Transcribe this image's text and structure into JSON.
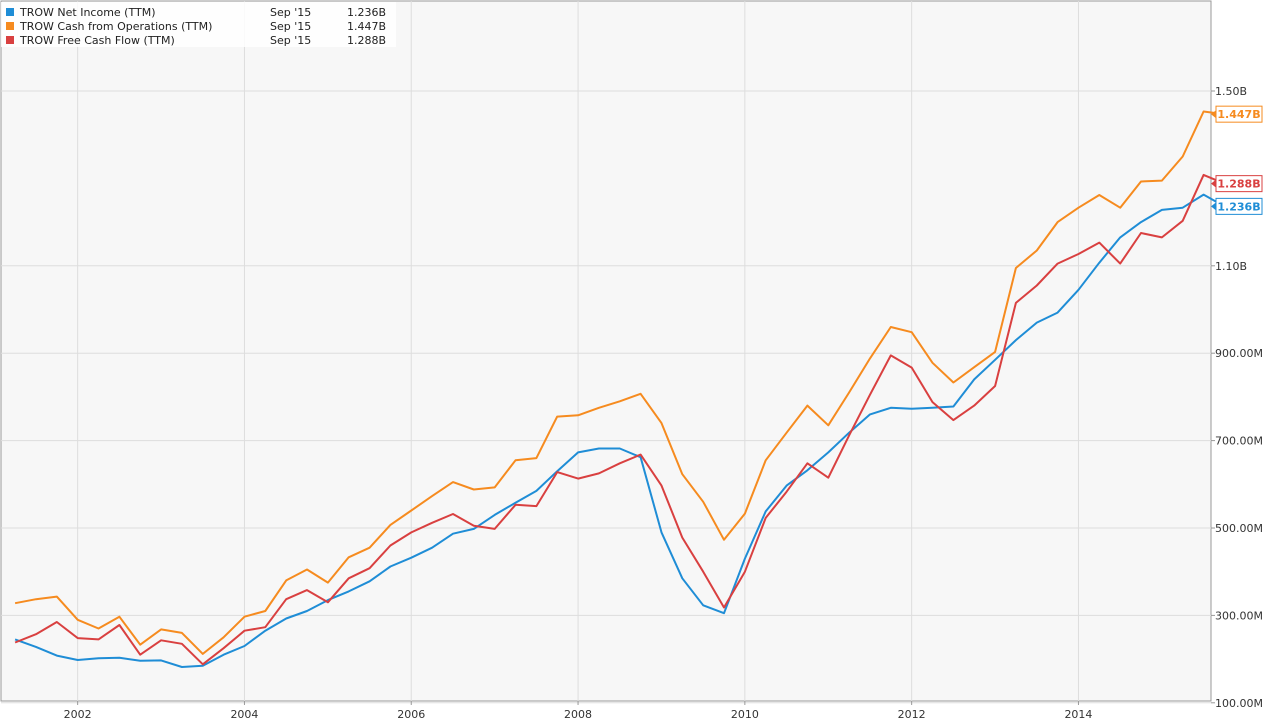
{
  "chart_data": {
    "type": "line",
    "title": "",
    "xlabel": "",
    "ylabel": "",
    "x_tick_labels": [
      "2002",
      "2004",
      "2006",
      "2008",
      "2010",
      "2012",
      "2014"
    ],
    "y_tick_labels": [
      "100.00M",
      "300.00M",
      "500.00M",
      "700.00M",
      "900.00M",
      "1.10B",
      "1.50B"
    ],
    "y_ticks": [
      0.1,
      0.3,
      0.5,
      0.7,
      0.9,
      1.1,
      1.5
    ],
    "xlim": [
      2001.25,
      2015.8
    ],
    "ylim": [
      0.0,
      1.6
    ],
    "grid": true,
    "legend_position": "top-left",
    "x": [
      2001.25,
      2001.5,
      2001.75,
      2002.0,
      2002.25,
      2002.5,
      2002.75,
      2003.0,
      2003.25,
      2003.5,
      2003.75,
      2004.0,
      2004.25,
      2004.5,
      2004.75,
      2005.0,
      2005.25,
      2005.5,
      2005.75,
      2006.0,
      2006.25,
      2006.5,
      2006.75,
      2007.0,
      2007.25,
      2007.5,
      2007.75,
      2008.0,
      2008.25,
      2008.5,
      2008.75,
      2009.0,
      2009.25,
      2009.5,
      2009.75,
      2010.0,
      2010.25,
      2010.5,
      2010.75,
      2011.0,
      2011.25,
      2011.5,
      2011.75,
      2012.0,
      2012.25,
      2012.5,
      2012.75,
      2013.0,
      2013.25,
      2013.5,
      2013.75,
      2014.0,
      2014.25,
      2014.5,
      2014.75,
      2015.0,
      2015.25,
      2015.5,
      2015.75
    ],
    "series": [
      {
        "name": "TROW Net Income (TTM)",
        "color": "#1f8dd6",
        "legend_date": "Sep '15",
        "legend_value": "1.236B",
        "values": [
          0.245,
          0.228,
          0.208,
          0.198,
          0.202,
          0.203,
          0.196,
          0.197,
          0.182,
          0.185,
          0.21,
          0.23,
          0.265,
          0.293,
          0.31,
          0.335,
          0.355,
          0.378,
          0.412,
          0.432,
          0.455,
          0.487,
          0.498,
          0.53,
          0.558,
          0.585,
          0.63,
          0.673,
          0.682,
          0.682,
          0.662,
          0.49,
          0.385,
          0.323,
          0.305,
          0.43,
          0.538,
          0.597,
          0.632,
          0.673,
          0.718,
          0.76,
          0.775,
          0.773,
          0.775,
          0.778,
          0.84,
          0.885,
          0.93,
          0.97,
          0.993,
          1.045,
          1.107,
          1.165,
          1.2,
          1.228,
          1.233,
          1.263,
          1.236
        ]
      },
      {
        "name": "TROW Cash from Operations (TTM)",
        "color": "#f68b1f",
        "legend_date": "Sep '15",
        "legend_value": "1.447B",
        "values": [
          0.328,
          0.337,
          0.343,
          0.29,
          0.27,
          0.297,
          0.233,
          0.268,
          0.26,
          0.212,
          0.25,
          0.297,
          0.31,
          0.38,
          0.405,
          0.375,
          0.433,
          0.455,
          0.507,
          0.54,
          0.573,
          0.605,
          0.588,
          0.593,
          0.655,
          0.66,
          0.755,
          0.758,
          0.775,
          0.79,
          0.807,
          0.74,
          0.623,
          0.56,
          0.473,
          0.533,
          0.655,
          0.718,
          0.78,
          0.735,
          0.81,
          0.888,
          0.96,
          0.948,
          0.878,
          0.833,
          0.868,
          0.903,
          1.095,
          1.135,
          1.2,
          1.233,
          1.262,
          1.233,
          1.293,
          1.295,
          1.35,
          1.453,
          1.447
        ]
      },
      {
        "name": "TROW Free Cash Flow (TTM)",
        "color": "#d94040",
        "legend_date": "Sep '15",
        "legend_value": "1.288B",
        "values": [
          0.238,
          0.257,
          0.285,
          0.248,
          0.245,
          0.278,
          0.21,
          0.243,
          0.235,
          0.188,
          0.225,
          0.265,
          0.273,
          0.337,
          0.358,
          0.33,
          0.385,
          0.408,
          0.46,
          0.49,
          0.512,
          0.532,
          0.505,
          0.498,
          0.553,
          0.55,
          0.628,
          0.613,
          0.625,
          0.648,
          0.668,
          0.597,
          0.478,
          0.4,
          0.318,
          0.4,
          0.523,
          0.583,
          0.648,
          0.615,
          0.712,
          0.805,
          0.895,
          0.867,
          0.788,
          0.747,
          0.78,
          0.825,
          1.015,
          1.055,
          1.105,
          1.127,
          1.153,
          1.105,
          1.175,
          1.165,
          1.203,
          1.308,
          1.288
        ]
      }
    ]
  }
}
